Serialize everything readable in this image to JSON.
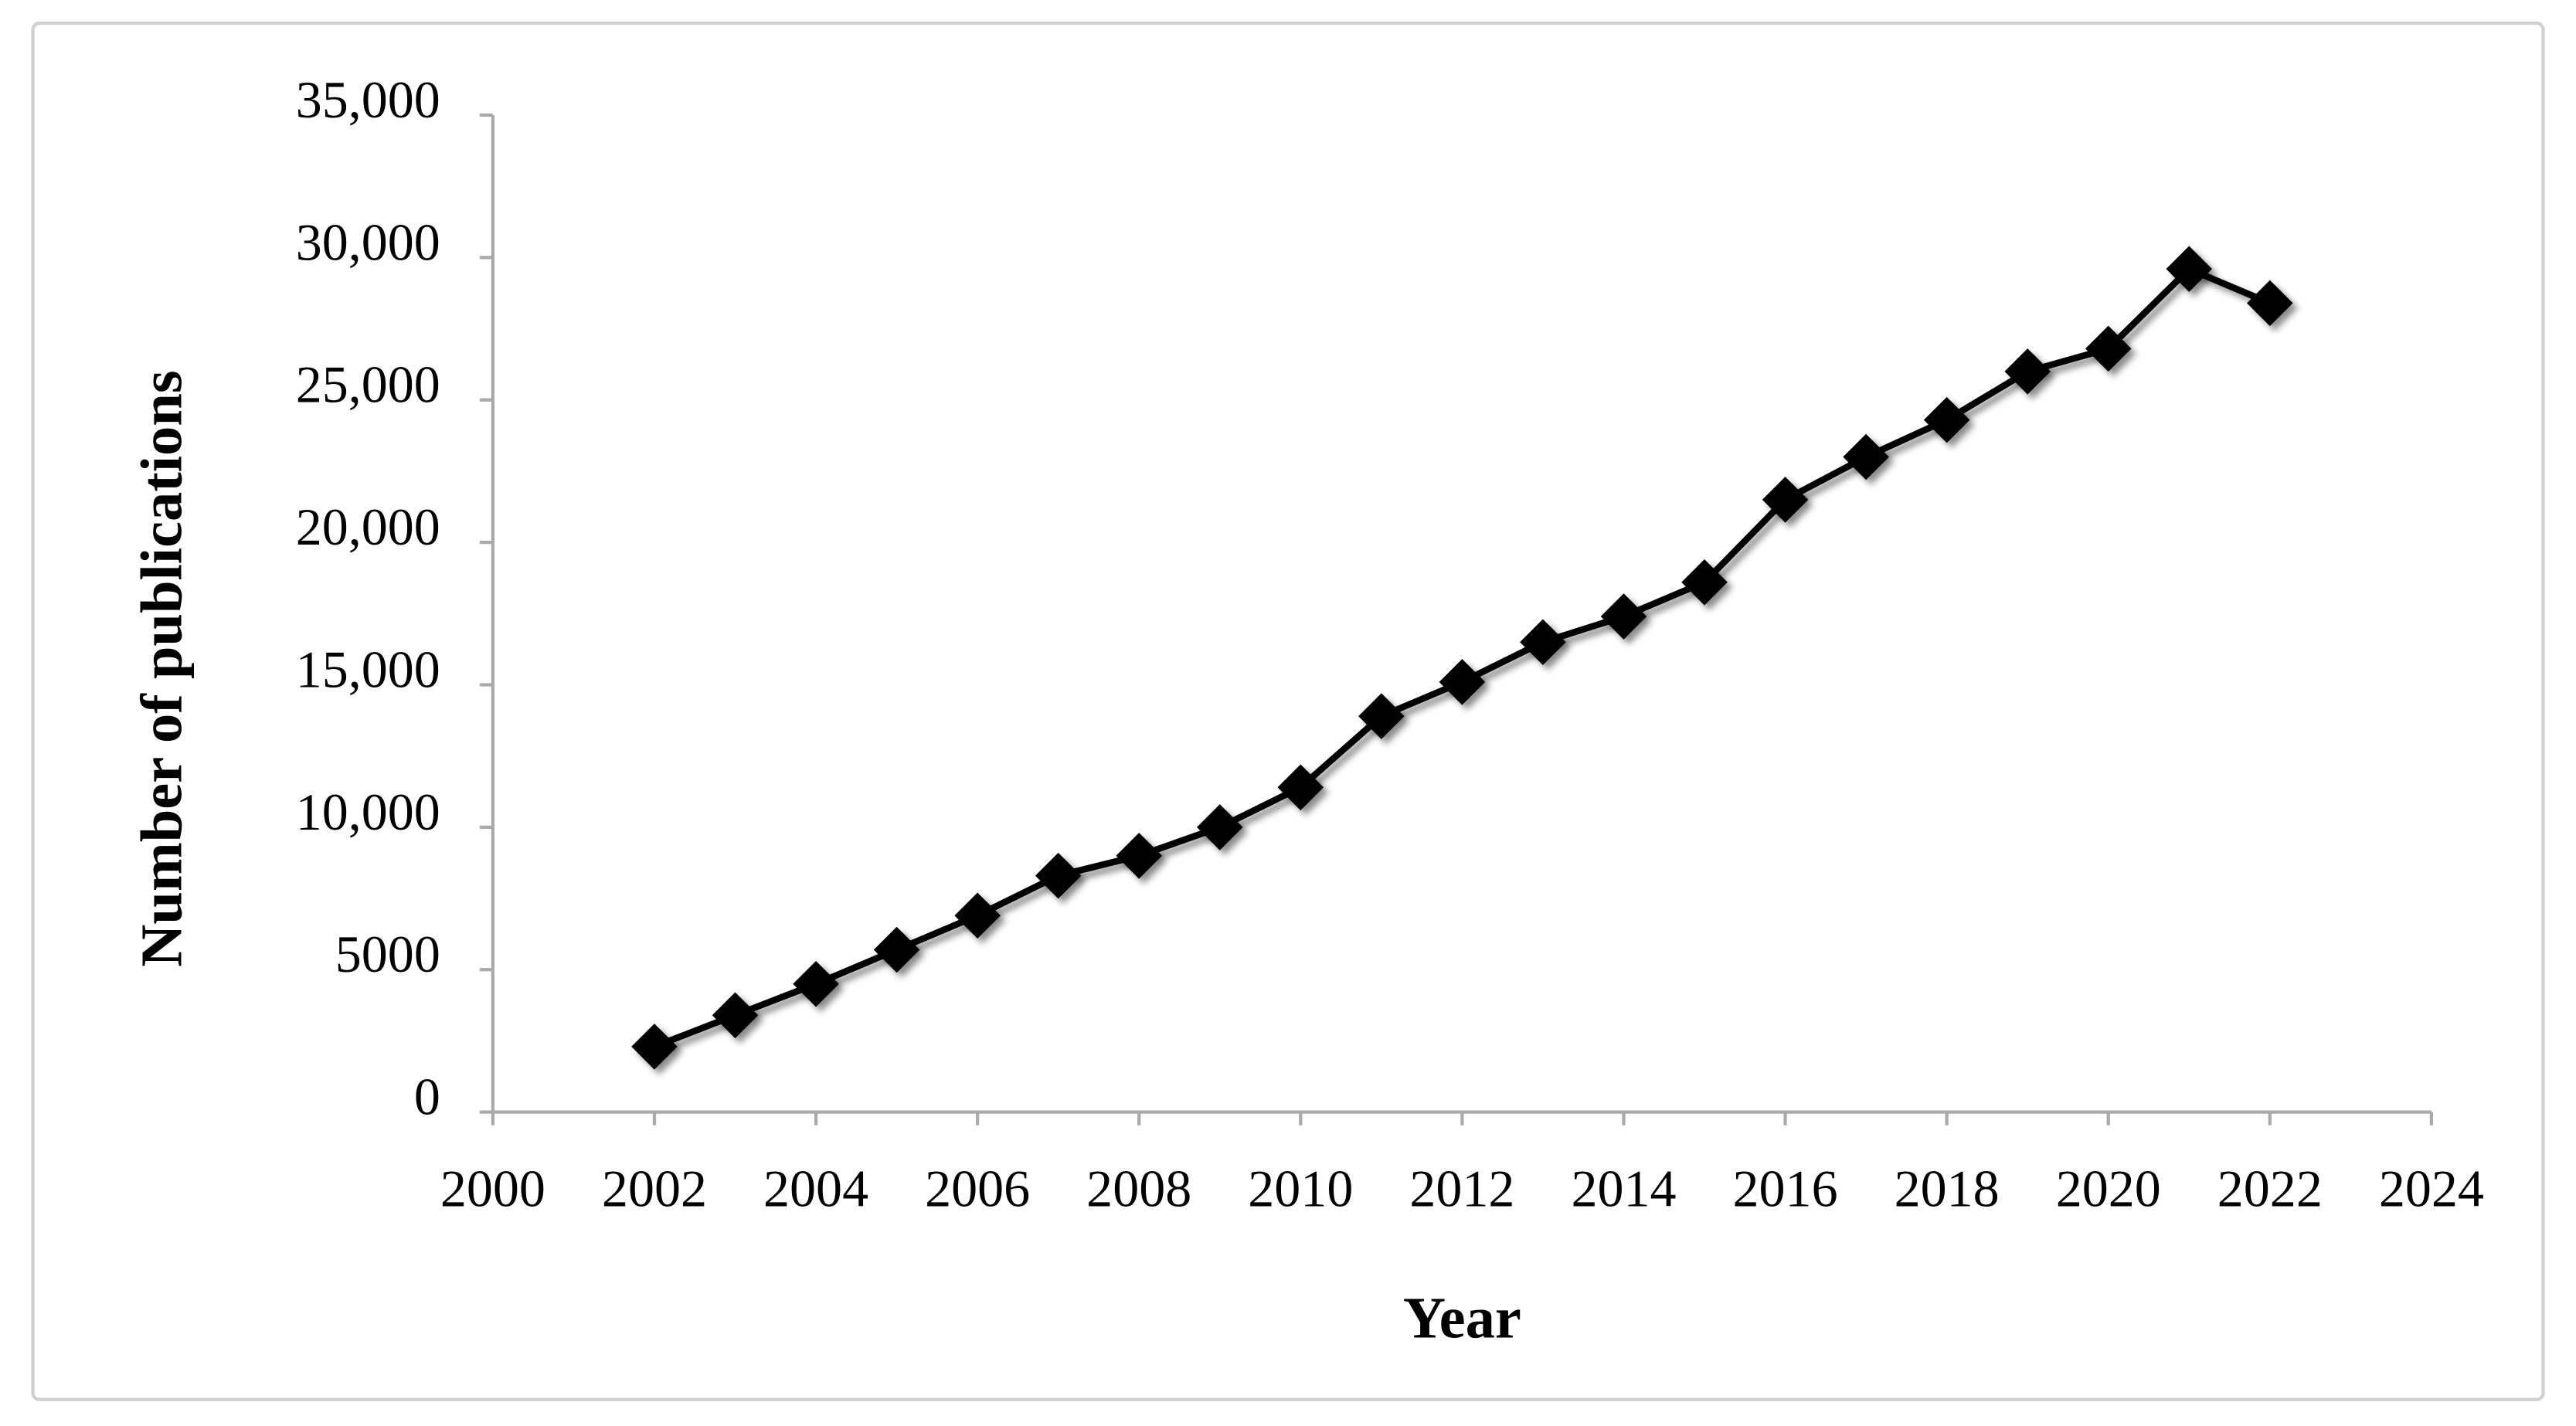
{
  "chart_data": {
    "type": "line",
    "x_label": "Year",
    "y_label": "Number of publications",
    "x": [
      2002,
      2003,
      2004,
      2005,
      2006,
      2007,
      2008,
      2009,
      2010,
      2011,
      2012,
      2013,
      2014,
      2015,
      2016,
      2017,
      2018,
      2019,
      2020,
      2021,
      2022
    ],
    "series": [
      {
        "color": "#000000",
        "values": [
          2300,
          3400,
          4500,
          5700,
          6900,
          8300,
          9000,
          10000,
          11400,
          13900,
          15100,
          16500,
          17400,
          18600,
          21500,
          23000,
          24300,
          26000,
          26800,
          29600,
          28400
        ]
      }
    ],
    "xlim": [
      2000,
      2024
    ],
    "xticks": [
      2000,
      2002,
      2004,
      2006,
      2008,
      2010,
      2012,
      2014,
      2016,
      2018,
      2020,
      2022,
      2024
    ],
    "ylim": [
      0,
      35000
    ],
    "yticks": [
      0,
      5000,
      {
        "value": 10000,
        "label": "10,000"
      },
      {
        "value": 15000,
        "label": "15,000"
      },
      {
        "value": 20000,
        "label": "20,000"
      },
      {
        "value": 25000,
        "label": "25,000"
      },
      {
        "value": 30000,
        "label": "30,000"
      },
      {
        "value": 35000,
        "label": "35,000"
      }
    ],
    "grid": false
  }
}
